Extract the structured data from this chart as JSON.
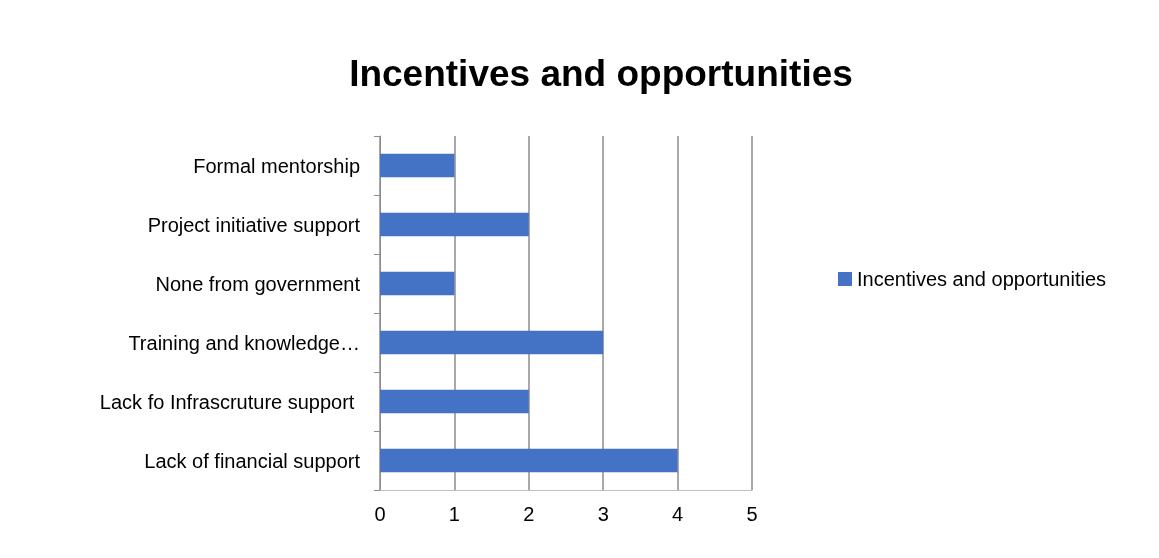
{
  "chart_data": {
    "type": "bar",
    "orientation": "horizontal",
    "title": "Incentives and opportunities",
    "categories": [
      "Formal mentorship",
      "Project initiative support",
      "None from government",
      "Training and knowledge…",
      "Lack fo Infrascruture support ",
      "Lack of financial support"
    ],
    "series": [
      {
        "name": "Incentives and opportunities",
        "color": "#4472c4",
        "values": [
          1,
          2,
          1,
          3,
          2,
          4
        ]
      }
    ],
    "xlim": [
      0,
      5
    ],
    "xticks": [
      0,
      1,
      2,
      3,
      4,
      5
    ],
    "grid": "x",
    "legend": "right"
  }
}
